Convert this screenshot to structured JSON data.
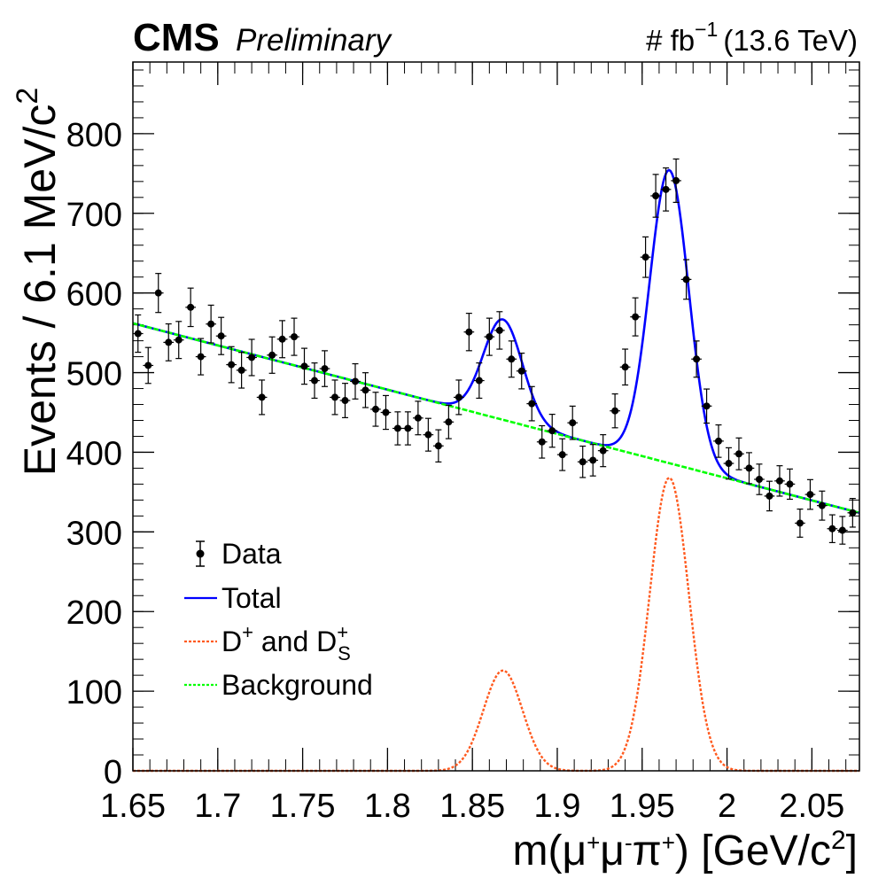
{
  "header": {
    "experiment": "CMS",
    "status": "Preliminary",
    "lumi_prefix": "# fb",
    "lumi_exp": "−1",
    "energy": "(13.6 TeV)"
  },
  "legend": {
    "data": "Data",
    "total": "Total",
    "signal_base": "D",
    "signal_sup": "+",
    "signal_mid": " and D",
    "signal_sub": "S",
    "signal_sup2": "+",
    "background": "Background"
  },
  "axes": {
    "ylabel_main": "Events / 6.1 MeV/c",
    "ylabel_exp": "2",
    "xlabel_main": "m(μ",
    "xlabel_sup1": "+",
    "xlabel_mu2": "μ",
    "xlabel_sup2": "-",
    "xlabel_pi": "π",
    "xlabel_sup3": "+",
    "xlabel_rest": ") [GeV/c",
    "xlabel_exp": "2",
    "xlabel_close": "]"
  },
  "chart_data": {
    "type": "scatter",
    "xlim": [
      1.65,
      2.078
    ],
    "ylim": [
      0,
      890
    ],
    "x_ticks": [
      1.65,
      1.7,
      1.75,
      1.8,
      1.85,
      1.9,
      1.95,
      2.0,
      2.05
    ],
    "x_tick_labels": [
      "1.65",
      "1.7",
      "1.75",
      "1.8",
      "1.85",
      "1.9",
      "1.95",
      "2",
      "2.05"
    ],
    "y_ticks": [
      0,
      100,
      200,
      300,
      400,
      500,
      600,
      700,
      800
    ],
    "y_tick_labels": [
      "0",
      "100",
      "200",
      "300",
      "400",
      "500",
      "600",
      "700",
      "800"
    ],
    "bin_width": 0.0061,
    "colors": {
      "data": "#000000",
      "total": "#0000ff",
      "signal": "#ff5a1f",
      "background": "#00ff00"
    },
    "legend_position": "bottom-left",
    "data": {
      "x": [
        1.653,
        1.659,
        1.665,
        1.671,
        1.677,
        1.684,
        1.69,
        1.696,
        1.702,
        1.708,
        1.714,
        1.72,
        1.726,
        1.732,
        1.738,
        1.745,
        1.751,
        1.757,
        1.763,
        1.769,
        1.775,
        1.781,
        1.787,
        1.793,
        1.799,
        1.806,
        1.812,
        1.818,
        1.824,
        1.83,
        1.836,
        1.842,
        1.848,
        1.854,
        1.86,
        1.866,
        1.873,
        1.879,
        1.885,
        1.891,
        1.897,
        1.903,
        1.909,
        1.915,
        1.921,
        1.927,
        1.934,
        1.94,
        1.946,
        1.952,
        1.958,
        1.964,
        1.97,
        1.976,
        1.982,
        1.988,
        1.995,
        2.001,
        2.007,
        2.013,
        2.019,
        2.025,
        2.031,
        2.037,
        2.043,
        2.049,
        2.056,
        2.062,
        2.068,
        2.074
      ],
      "y": [
        549,
        509,
        600,
        538,
        541,
        582,
        520,
        561,
        546,
        510,
        503,
        519,
        469,
        522,
        542,
        545,
        508,
        490,
        505,
        469,
        465,
        489,
        478,
        454,
        450,
        430,
        430,
        443,
        422,
        408,
        438,
        469,
        551,
        490,
        545,
        553,
        517,
        502,
        461,
        413,
        427,
        397,
        437,
        388,
        390,
        402,
        452,
        507,
        570,
        645,
        722,
        730,
        741,
        617,
        517,
        458,
        414,
        386,
        398,
        380,
        366,
        345,
        364,
        360,
        311,
        347,
        333,
        304,
        302,
        324
      ]
    },
    "background_fit": {
      "x": [
        1.65,
        2.078
      ],
      "y": [
        562,
        324
      ]
    },
    "signal_peaks": [
      {
        "name": "D+",
        "mean": 1.868,
        "sigma": 0.0115,
        "height": 126
      },
      {
        "name": "Ds+",
        "mean": 1.966,
        "sigma": 0.0115,
        "height": 368
      }
    ]
  }
}
